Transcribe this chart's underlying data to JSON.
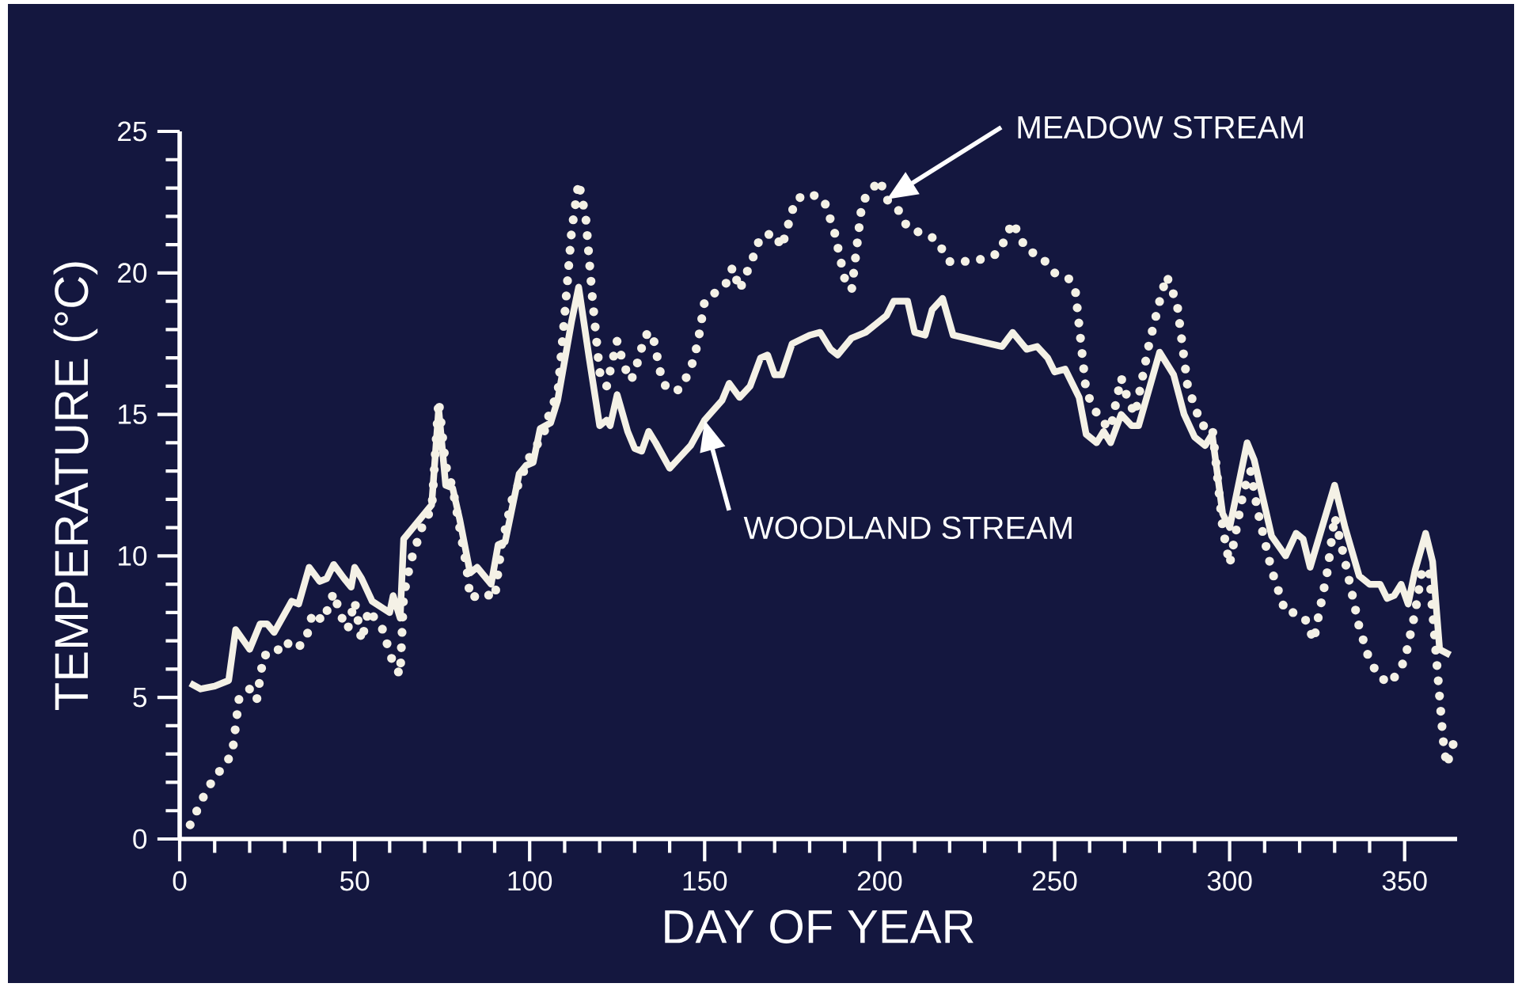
{
  "chart_data": {
    "type": "line",
    "xlabel": "DAY OF YEAR",
    "ylabel": "TEMPERATURE (°C)",
    "xlim": [
      0,
      365
    ],
    "ylim": [
      0,
      25
    ],
    "xticks": [
      0,
      50,
      100,
      150,
      200,
      250,
      300,
      350
    ],
    "yticks": [
      0,
      5,
      10,
      15,
      20,
      25
    ],
    "grid": false,
    "marker": "none",
    "series": [
      {
        "name": "WOODLAND STREAM",
        "color": "#f4f1e6",
        "line_style": "solid",
        "x": [
          3,
          6,
          10,
          14,
          16,
          20,
          23,
          25,
          27,
          32,
          34,
          37,
          40,
          42,
          44,
          47,
          49,
          50,
          52,
          55,
          60,
          61,
          63,
          64,
          72,
          74,
          76,
          78,
          80,
          83,
          85,
          89,
          91,
          93,
          97,
          99,
          101,
          103,
          106,
          108,
          112,
          114,
          117,
          120,
          122,
          123,
          125,
          128,
          130,
          132,
          134,
          136,
          140,
          143,
          146,
          150,
          155,
          157,
          160,
          163,
          166,
          168,
          170,
          172,
          175,
          180,
          183,
          186,
          188,
          192,
          196,
          199,
          202,
          204,
          208,
          210,
          213,
          215,
          218,
          221,
          235,
          238,
          242,
          245,
          248,
          250,
          253,
          257,
          259,
          262,
          264,
          266,
          269,
          272,
          274,
          280,
          284,
          287,
          290,
          293,
          295,
          298,
          300,
          305,
          307,
          312,
          316,
          319,
          321,
          323,
          330,
          333,
          337,
          340,
          343,
          345,
          347,
          349,
          351,
          353,
          356,
          358,
          360,
          363
        ],
        "values": [
          5.5,
          5.3,
          5.4,
          5.6,
          7.4,
          6.7,
          7.6,
          7.6,
          7.3,
          8.4,
          8.3,
          9.6,
          9.1,
          9.2,
          9.7,
          9.2,
          8.9,
          9.6,
          9.2,
          8.4,
          8.0,
          8.6,
          7.8,
          10.6,
          11.8,
          15.2,
          12.5,
          12.4,
          11.3,
          9.4,
          9.6,
          9.0,
          10.4,
          10.5,
          12.9,
          13.2,
          13.3,
          14.5,
          14.7,
          15.5,
          18.3,
          19.5,
          17.0,
          14.6,
          14.8,
          14.6,
          15.7,
          14.4,
          13.8,
          13.7,
          14.4,
          14.0,
          13.1,
          13.5,
          13.9,
          14.8,
          15.5,
          16.1,
          15.6,
          16.0,
          17.0,
          17.1,
          16.4,
          16.4,
          17.5,
          17.8,
          17.9,
          17.3,
          17.1,
          17.7,
          17.9,
          18.2,
          18.5,
          19.0,
          19.0,
          17.9,
          17.8,
          18.7,
          19.1,
          17.8,
          17.4,
          17.9,
          17.3,
          17.4,
          17.0,
          16.5,
          16.6,
          15.6,
          14.3,
          14.0,
          14.4,
          14.0,
          15.0,
          14.6,
          14.6,
          17.2,
          16.4,
          15.0,
          14.2,
          13.9,
          14.3,
          11.5,
          11.0,
          14.0,
          13.4,
          10.7,
          10.0,
          10.8,
          10.6,
          9.6,
          12.5,
          11.0,
          9.3,
          9.0,
          9.0,
          8.5,
          8.6,
          9.0,
          8.3,
          9.5,
          10.8,
          9.8,
          6.7,
          6.5
        ]
      },
      {
        "name": "MEADOW STREAM",
        "color": "#f4f1e6",
        "line_style": "dotted",
        "x": [
          3,
          8,
          12,
          15,
          17,
          20,
          22,
          24,
          27,
          30,
          33,
          36,
          38,
          41,
          44,
          46,
          48,
          50,
          52,
          54,
          58,
          61,
          63,
          64,
          66,
          70,
          72,
          74,
          76,
          78,
          82,
          83,
          87,
          90,
          92,
          95,
          100,
          104,
          106,
          108,
          110,
          112,
          114,
          116,
          118,
          120,
          122,
          125,
          127,
          129,
          131,
          133,
          135,
          138,
          141,
          143,
          146,
          148,
          150,
          153,
          156,
          158,
          160,
          164,
          166,
          170,
          172,
          176,
          180,
          184,
          187,
          190,
          192,
          195,
          200,
          202,
          205,
          208,
          212,
          216,
          220,
          224,
          230,
          234,
          238,
          242,
          246,
          250,
          254,
          256,
          259,
          263,
          266,
          269,
          271,
          273,
          277,
          280,
          282,
          285,
          288,
          292,
          295,
          298,
          300,
          304,
          306,
          308,
          312,
          316,
          319,
          322,
          324,
          328,
          330,
          333,
          337,
          340,
          343,
          346,
          350,
          353,
          355,
          357,
          359,
          361,
          362,
          364
        ],
        "values": [
          0.5,
          1.8,
          2.5,
          3.0,
          5.0,
          5.3,
          4.9,
          6.5,
          6.5,
          7.0,
          6.7,
          7.0,
          8.0,
          7.7,
          8.7,
          7.9,
          7.4,
          8.4,
          7.0,
          8.1,
          7.4,
          6.2,
          5.8,
          8.6,
          9.8,
          11.3,
          11.6,
          15.5,
          13.2,
          12.4,
          9.6,
          8.5,
          8.7,
          8.5,
          10.4,
          12.0,
          13.5,
          14.3,
          15.2,
          15.7,
          18.5,
          21.5,
          23.2,
          22.0,
          19.0,
          16.5,
          16.0,
          17.6,
          16.7,
          16.2,
          16.9,
          17.8,
          17.9,
          16.1,
          15.8,
          15.9,
          16.6,
          17.5,
          19.0,
          19.3,
          19.6,
          20.2,
          19.4,
          20.6,
          21.3,
          21.4,
          20.9,
          22.6,
          22.8,
          22.6,
          21.5,
          19.8,
          19.4,
          22.5,
          23.3,
          22.6,
          22.3,
          21.6,
          21.4,
          21.2,
          20.4,
          20.4,
          20.5,
          20.7,
          21.8,
          20.8,
          20.6,
          20.0,
          19.8,
          19.3,
          15.8,
          14.8,
          14.5,
          16.3,
          15.5,
          15.0,
          17.5,
          19.0,
          19.9,
          18.9,
          16.0,
          14.6,
          14.6,
          11.0,
          9.7,
          12.3,
          13.0,
          11.6,
          9.5,
          8.0,
          8.0,
          7.7,
          7.0,
          9.5,
          11.4,
          9.8,
          7.5,
          6.3,
          5.7,
          5.5,
          6.3,
          8.0,
          9.5,
          9.5,
          6.5,
          3.5,
          2.6,
          3.4
        ]
      }
    ]
  }
}
